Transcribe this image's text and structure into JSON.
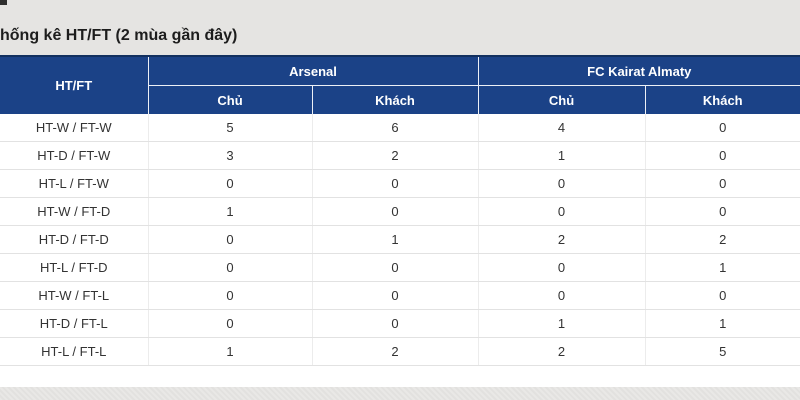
{
  "page": {
    "title": "hống kê HT/FT (2 mùa gần đây)"
  },
  "colors": {
    "page_bg": "#e5e4e2",
    "panel_bg": "#ffffff",
    "header_bg": "#1b4287",
    "header_top_border": "#12305f",
    "header_text": "#ffffff",
    "cell_text": "#333333",
    "row_border": "#e2e2e2"
  },
  "table": {
    "corner_header": "HT/FT",
    "groups": [
      {
        "label": "Arsenal",
        "subcolumns": [
          "Chủ",
          "Khách"
        ]
      },
      {
        "label": "FC Kairat Almaty",
        "subcolumns": [
          "Chủ",
          "Khách"
        ]
      }
    ],
    "rows": [
      {
        "label": "HT-W / FT-W",
        "values": [
          5,
          6,
          4,
          0
        ]
      },
      {
        "label": "HT-D / FT-W",
        "values": [
          3,
          2,
          1,
          0
        ]
      },
      {
        "label": "HT-L / FT-W",
        "values": [
          0,
          0,
          0,
          0
        ]
      },
      {
        "label": "HT-W / FT-D",
        "values": [
          1,
          0,
          0,
          0
        ]
      },
      {
        "label": "HT-D / FT-D",
        "values": [
          0,
          1,
          2,
          2
        ]
      },
      {
        "label": "HT-L / FT-D",
        "values": [
          0,
          0,
          0,
          1
        ]
      },
      {
        "label": "HT-W / FT-L",
        "values": [
          0,
          0,
          0,
          0
        ]
      },
      {
        "label": "HT-D / FT-L",
        "values": [
          0,
          0,
          1,
          1
        ]
      },
      {
        "label": "HT-L / FT-L",
        "values": [
          1,
          2,
          2,
          5
        ]
      }
    ]
  }
}
